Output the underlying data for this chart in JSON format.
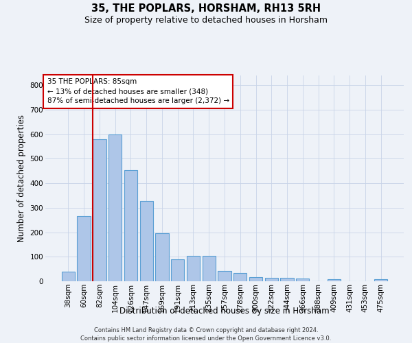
{
  "title": "35, THE POPLARS, HORSHAM, RH13 5RH",
  "subtitle": "Size of property relative to detached houses in Horsham",
  "xlabel": "Distribution of detached houses by size in Horsham",
  "ylabel": "Number of detached properties",
  "footer_line1": "Contains HM Land Registry data © Crown copyright and database right 2024.",
  "footer_line2": "Contains public sector information licensed under the Open Government Licence v3.0.",
  "bar_labels": [
    "38sqm",
    "60sqm",
    "82sqm",
    "104sqm",
    "126sqm",
    "147sqm",
    "169sqm",
    "191sqm",
    "213sqm",
    "235sqm",
    "257sqm",
    "278sqm",
    "300sqm",
    "322sqm",
    "344sqm",
    "366sqm",
    "388sqm",
    "409sqm",
    "431sqm",
    "453sqm",
    "475sqm"
  ],
  "bar_values": [
    40,
    265,
    580,
    600,
    455,
    328,
    195,
    90,
    103,
    103,
    42,
    35,
    18,
    15,
    15,
    10,
    0,
    8,
    0,
    0,
    8
  ],
  "bar_color": "#aec6e8",
  "bar_edgecolor": "#5a9fd4",
  "bar_linewidth": 0.8,
  "vline_color": "#cc0000",
  "vline_x_index": 2,
  "annotation_text": "35 THE POPLARS: 85sqm\n← 13% of detached houses are smaller (348)\n87% of semi-detached houses are larger (2,372) →",
  "annotation_box_facecolor": "white",
  "annotation_box_edgecolor": "#cc0000",
  "annotation_fontsize": 7.5,
  "ylim": [
    0,
    840
  ],
  "yticks": [
    0,
    100,
    200,
    300,
    400,
    500,
    600,
    700,
    800
  ],
  "background_color": "#eef2f8",
  "grid_color": "#c8d4e8",
  "title_fontsize": 10.5,
  "subtitle_fontsize": 9,
  "xlabel_fontsize": 8.5,
  "ylabel_fontsize": 8.5,
  "tick_fontsize": 7.5,
  "footer_fontsize": 6
}
